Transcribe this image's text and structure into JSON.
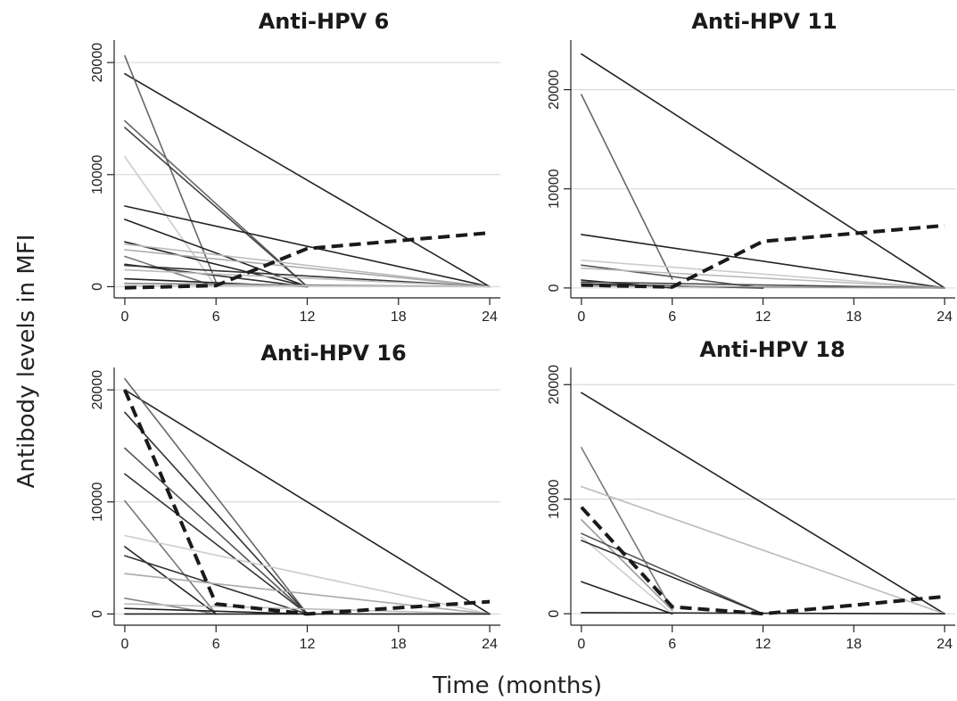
{
  "figure": {
    "ylabel": "Antibody levels in MFI",
    "xlabel": "Time (months)"
  },
  "chart_data": [
    {
      "type": "line",
      "title": "Anti-HPV 6",
      "x_ticks": [
        0,
        6,
        12,
        18,
        24
      ],
      "y_ticks": [
        0,
        10000,
        20000
      ],
      "y_tick_labels": [
        "0",
        "10000",
        "20000"
      ],
      "xlim": [
        -0.7,
        24.7
      ],
      "ylim": [
        -1000,
        22000
      ],
      "grid": true,
      "series": [
        {
          "x": [
            0,
            24
          ],
          "y": [
            19000,
            0
          ],
          "color": "#222222",
          "dash": false
        },
        {
          "x": [
            0,
            6
          ],
          "y": [
            20600,
            400
          ],
          "color": "#666666",
          "dash": false
        },
        {
          "x": [
            0,
            12
          ],
          "y": [
            14800,
            0
          ],
          "color": "#666666",
          "dash": false
        },
        {
          "x": [
            0,
            12
          ],
          "y": [
            14200,
            0
          ],
          "color": "#444444",
          "dash": false
        },
        {
          "x": [
            0,
            6
          ],
          "y": [
            11600,
            0
          ],
          "color": "#cccccc",
          "dash": false
        },
        {
          "x": [
            0,
            24
          ],
          "y": [
            7200,
            0
          ],
          "color": "#222222",
          "dash": false
        },
        {
          "x": [
            0,
            12
          ],
          "y": [
            6000,
            0
          ],
          "color": "#222222",
          "dash": false
        },
        {
          "x": [
            0,
            12
          ],
          "y": [
            4000,
            0
          ],
          "color": "#222222",
          "dash": false
        },
        {
          "x": [
            0,
            24
          ],
          "y": [
            3800,
            0
          ],
          "color": "#bbbbbb",
          "dash": false
        },
        {
          "x": [
            0,
            24
          ],
          "y": [
            3300,
            0
          ],
          "color": "#aaaaaa",
          "dash": false
        },
        {
          "x": [
            0,
            6
          ],
          "y": [
            2700,
            0
          ],
          "color": "#777777",
          "dash": false
        },
        {
          "x": [
            0,
            12
          ],
          "y": [
            2000,
            0
          ],
          "color": "#333333",
          "dash": false
        },
        {
          "x": [
            0,
            24
          ],
          "y": [
            1900,
            0
          ],
          "color": "#333333",
          "dash": false
        },
        {
          "x": [
            0,
            24
          ],
          "y": [
            1500,
            0
          ],
          "color": "#bbbbbb",
          "dash": false
        },
        {
          "x": [
            0,
            12
          ],
          "y": [
            700,
            0
          ],
          "color": "#222222",
          "dash": false
        },
        {
          "x": [
            0,
            24
          ],
          "y": [
            300,
            0
          ],
          "color": "#888888",
          "dash": false
        },
        {
          "x": [
            0,
            24
          ],
          "y": [
            100,
            0
          ],
          "color": "#cccccc",
          "dash": false
        },
        {
          "x": [
            0,
            6,
            12,
            24
          ],
          "y": [
            -100,
            100,
            3400,
            4800
          ],
          "color": "#1a1a1a",
          "dash": true
        }
      ]
    },
    {
      "type": "line",
      "title": "Anti-HPV 11",
      "x_ticks": [
        0,
        6,
        12,
        18,
        24
      ],
      "y_ticks": [
        0,
        10000,
        20000
      ],
      "y_tick_labels": [
        "0",
        "10000",
        "20000"
      ],
      "xlim": [
        -0.7,
        24.7
      ],
      "ylim": [
        -1000,
        25000
      ],
      "grid": true,
      "series": [
        {
          "x": [
            0,
            24
          ],
          "y": [
            23600,
            0
          ],
          "color": "#222222",
          "dash": false
        },
        {
          "x": [
            0,
            6
          ],
          "y": [
            19500,
            900
          ],
          "color": "#666666",
          "dash": false
        },
        {
          "x": [
            0,
            24
          ],
          "y": [
            5400,
            0
          ],
          "color": "#222222",
          "dash": false
        },
        {
          "x": [
            0,
            24
          ],
          "y": [
            2800,
            0
          ],
          "color": "#cccccc",
          "dash": false
        },
        {
          "x": [
            0,
            12
          ],
          "y": [
            2300,
            0
          ],
          "color": "#555555",
          "dash": false
        },
        {
          "x": [
            0,
            24
          ],
          "y": [
            2000,
            0
          ],
          "color": "#bbbbbb",
          "dash": false
        },
        {
          "x": [
            0,
            6
          ],
          "y": [
            800,
            0
          ],
          "color": "#222222",
          "dash": false
        },
        {
          "x": [
            0,
            24
          ],
          "y": [
            600,
            0
          ],
          "color": "#444444",
          "dash": false
        },
        {
          "x": [
            0,
            12
          ],
          "y": [
            400,
            0
          ],
          "color": "#222222",
          "dash": false
        },
        {
          "x": [
            0,
            24
          ],
          "y": [
            200,
            0
          ],
          "color": "#999999",
          "dash": false
        },
        {
          "x": [
            0,
            6,
            12,
            24
          ],
          "y": [
            300,
            100,
            4700,
            6300
          ],
          "color": "#1a1a1a",
          "dash": true
        }
      ]
    },
    {
      "type": "line",
      "title": "Anti-HPV 16",
      "x_ticks": [
        0,
        6,
        12,
        18,
        24
      ],
      "y_ticks": [
        0,
        10000,
        20000
      ],
      "y_tick_labels": [
        "0",
        "10000",
        "20000"
      ],
      "xlim": [
        -0.7,
        24.7
      ],
      "ylim": [
        -1000,
        22000
      ],
      "grid": true,
      "series": [
        {
          "x": [
            0,
            24
          ],
          "y": [
            20000,
            0
          ],
          "color": "#222222",
          "dash": false
        },
        {
          "x": [
            0,
            12
          ],
          "y": [
            21000,
            0
          ],
          "color": "#666666",
          "dash": false
        },
        {
          "x": [
            0,
            12
          ],
          "y": [
            18000,
            0
          ],
          "color": "#333333",
          "dash": false
        },
        {
          "x": [
            0,
            12
          ],
          "y": [
            14800,
            0
          ],
          "color": "#555555",
          "dash": false
        },
        {
          "x": [
            0,
            12
          ],
          "y": [
            12500,
            0
          ],
          "color": "#333333",
          "dash": false
        },
        {
          "x": [
            0,
            6
          ],
          "y": [
            10100,
            0
          ],
          "color": "#777777",
          "dash": false
        },
        {
          "x": [
            0,
            24
          ],
          "y": [
            7000,
            0
          ],
          "color": "#cccccc",
          "dash": false
        },
        {
          "x": [
            0,
            6
          ],
          "y": [
            6000,
            0
          ],
          "color": "#222222",
          "dash": false
        },
        {
          "x": [
            0,
            12
          ],
          "y": [
            5200,
            0
          ],
          "color": "#333333",
          "dash": false
        },
        {
          "x": [
            0,
            24
          ],
          "y": [
            3600,
            0
          ],
          "color": "#aaaaaa",
          "dash": false
        },
        {
          "x": [
            0,
            6
          ],
          "y": [
            1400,
            0
          ],
          "color": "#888888",
          "dash": false
        },
        {
          "x": [
            0,
            24
          ],
          "y": [
            900,
            0
          ],
          "color": "#bbbbbb",
          "dash": false
        },
        {
          "x": [
            0,
            12
          ],
          "y": [
            500,
            0
          ],
          "color": "#222222",
          "dash": false
        },
        {
          "x": [
            0,
            24
          ],
          "y": [
            0,
            0
          ],
          "color": "#222222",
          "dash": false
        },
        {
          "x": [
            0,
            6,
            12,
            24
          ],
          "y": [
            20000,
            900,
            0,
            1100
          ],
          "color": "#1a1a1a",
          "dash": true
        }
      ]
    },
    {
      "type": "line",
      "title": "Anti-HPV 18",
      "x_ticks": [
        0,
        6,
        12,
        18,
        24
      ],
      "y_ticks": [
        0,
        10000,
        20000
      ],
      "y_tick_labels": [
        "0",
        "10000",
        "20000"
      ],
      "xlim": [
        -0.7,
        24.7
      ],
      "ylim": [
        -1000,
        21500
      ],
      "grid": true,
      "series": [
        {
          "x": [
            0,
            24
          ],
          "y": [
            19300,
            0
          ],
          "color": "#222222",
          "dash": false
        },
        {
          "x": [
            0,
            6
          ],
          "y": [
            14500,
            300
          ],
          "color": "#777777",
          "dash": false
        },
        {
          "x": [
            0,
            24
          ],
          "y": [
            11100,
            0
          ],
          "color": "#bbbbbb",
          "dash": false
        },
        {
          "x": [
            0,
            6
          ],
          "y": [
            8200,
            300
          ],
          "color": "#999999",
          "dash": false
        },
        {
          "x": [
            0,
            12
          ],
          "y": [
            7000,
            0
          ],
          "color": "#555555",
          "dash": false
        },
        {
          "x": [
            0,
            6
          ],
          "y": [
            6700,
            0
          ],
          "color": "#cccccc",
          "dash": false
        },
        {
          "x": [
            0,
            12
          ],
          "y": [
            6400,
            0
          ],
          "color": "#333333",
          "dash": false
        },
        {
          "x": [
            0,
            6
          ],
          "y": [
            2800,
            0
          ],
          "color": "#222222",
          "dash": false
        },
        {
          "x": [
            0,
            24
          ],
          "y": [
            100,
            0
          ],
          "color": "#222222",
          "dash": false
        },
        {
          "x": [
            0,
            6,
            12,
            24
          ],
          "y": [
            9300,
            600,
            0,
            1500
          ],
          "color": "#1a1a1a",
          "dash": true
        }
      ]
    }
  ]
}
